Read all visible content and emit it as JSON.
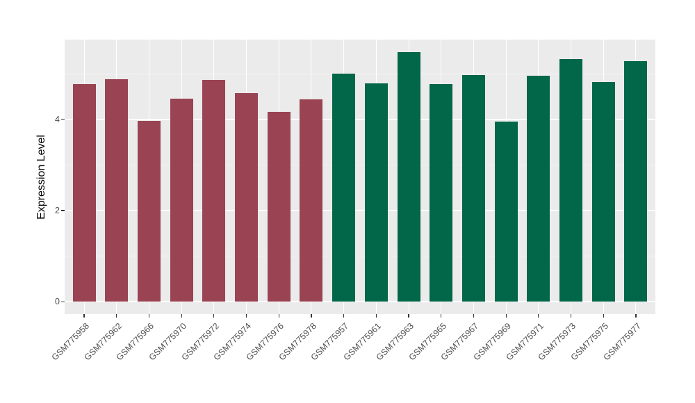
{
  "chart_data": {
    "type": "bar",
    "title": "",
    "xlabel": "",
    "ylabel": "Expression Level",
    "legend": "none",
    "grid": true,
    "panel_background": "#EBEBEB",
    "major_gridline_color": "#FFFFFF",
    "minor_gridline_color": "#F5F5F5",
    "axis_text_color": "#4D4D4D",
    "ylim": [
      -0.27,
      5.75
    ],
    "y_major_ticks": [
      0,
      2,
      4
    ],
    "y_minor_gridlines": [
      1,
      3,
      5
    ],
    "group_colors": {
      "group1": "#9A4352",
      "group2": "#026648"
    },
    "bars": [
      {
        "label": "GSM775958",
        "value": 4.77,
        "group": "group1"
      },
      {
        "label": "GSM775962",
        "value": 4.88,
        "group": "group1"
      },
      {
        "label": "GSM775966",
        "value": 3.96,
        "group": "group1"
      },
      {
        "label": "GSM775970",
        "value": 4.46,
        "group": "group1"
      },
      {
        "label": "GSM775972",
        "value": 4.87,
        "group": "group1"
      },
      {
        "label": "GSM775974",
        "value": 4.58,
        "group": "group1"
      },
      {
        "label": "GSM775976",
        "value": 4.16,
        "group": "group1"
      },
      {
        "label": "GSM775978",
        "value": 4.44,
        "group": "group1"
      },
      {
        "label": "GSM775957",
        "value": 5.0,
        "group": "group2"
      },
      {
        "label": "GSM775961",
        "value": 4.79,
        "group": "group2"
      },
      {
        "label": "GSM775963",
        "value": 5.48,
        "group": "group2"
      },
      {
        "label": "GSM775965",
        "value": 4.77,
        "group": "group2"
      },
      {
        "label": "GSM775967",
        "value": 4.98,
        "group": "group2"
      },
      {
        "label": "GSM775969",
        "value": 3.95,
        "group": "group2"
      },
      {
        "label": "GSM775971",
        "value": 4.95,
        "group": "group2"
      },
      {
        "label": "GSM775973",
        "value": 5.33,
        "group": "group2"
      },
      {
        "label": "GSM775975",
        "value": 4.82,
        "group": "group2"
      },
      {
        "label": "GSM775977",
        "value": 5.27,
        "group": "group2"
      }
    ]
  }
}
